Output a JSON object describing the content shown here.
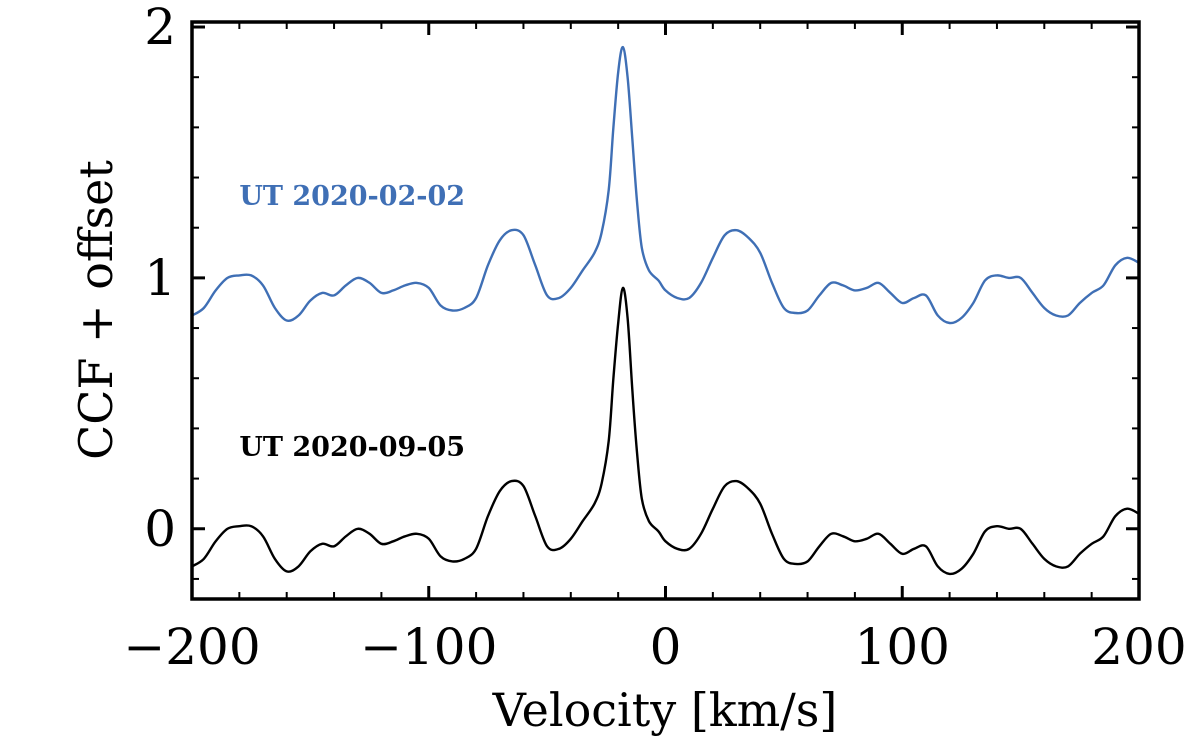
{
  "chart_data": {
    "type": "line",
    "xlabel": "Velocity [km/s]",
    "ylabel": "CCF + offset",
    "xlim": [
      -200,
      200
    ],
    "ylim": [
      -0.28,
      2.02
    ],
    "x_ticks": [
      -200,
      -100,
      0,
      100,
      200
    ],
    "x_tick_labels": [
      "−200",
      "−100",
      "0",
      "100",
      "200"
    ],
    "y_ticks": [
      0,
      1,
      2
    ],
    "y_tick_labels": [
      "0",
      "1",
      "2"
    ],
    "grid": false,
    "series": [
      {
        "name": "UT 2020-02-02",
        "color": "#3f6fb5",
        "offset": 1,
        "label": "UT 2020-02-02",
        "points": [
          [
            -200,
            -0.15
          ],
          [
            -195,
            -0.12
          ],
          [
            -190,
            -0.05
          ],
          [
            -185,
            0.0
          ],
          [
            -180,
            0.01
          ],
          [
            -175,
            0.01
          ],
          [
            -170,
            -0.03
          ],
          [
            -165,
            -0.12
          ],
          [
            -160,
            -0.17
          ],
          [
            -155,
            -0.15
          ],
          [
            -150,
            -0.09
          ],
          [
            -145,
            -0.06
          ],
          [
            -140,
            -0.07
          ],
          [
            -135,
            -0.03
          ],
          [
            -130,
            0.0
          ],
          [
            -125,
            -0.02
          ],
          [
            -120,
            -0.06
          ],
          [
            -115,
            -0.05
          ],
          [
            -110,
            -0.03
          ],
          [
            -105,
            -0.02
          ],
          [
            -100,
            -0.04
          ],
          [
            -95,
            -0.11
          ],
          [
            -90,
            -0.13
          ],
          [
            -85,
            -0.12
          ],
          [
            -80,
            -0.08
          ],
          [
            -75,
            0.05
          ],
          [
            -70,
            0.15
          ],
          [
            -65,
            0.19
          ],
          [
            -60,
            0.17
          ],
          [
            -55,
            0.05
          ],
          [
            -50,
            -0.07
          ],
          [
            -45,
            -0.08
          ],
          [
            -40,
            -0.04
          ],
          [
            -35,
            0.03
          ],
          [
            -30,
            0.1
          ],
          [
            -27,
            0.18
          ],
          [
            -24,
            0.35
          ],
          [
            -22,
            0.6
          ],
          [
            -20,
            0.82
          ],
          [
            -18,
            0.92
          ],
          [
            -16,
            0.8
          ],
          [
            -14,
            0.55
          ],
          [
            -12,
            0.3
          ],
          [
            -10,
            0.12
          ],
          [
            -7,
            0.03
          ],
          [
            -3,
            -0.01
          ],
          [
            0,
            -0.05
          ],
          [
            5,
            -0.08
          ],
          [
            10,
            -0.08
          ],
          [
            15,
            -0.02
          ],
          [
            20,
            0.08
          ],
          [
            25,
            0.17
          ],
          [
            30,
            0.19
          ],
          [
            35,
            0.16
          ],
          [
            40,
            0.1
          ],
          [
            45,
            -0.02
          ],
          [
            50,
            -0.12
          ],
          [
            55,
            -0.14
          ],
          [
            60,
            -0.13
          ],
          [
            65,
            -0.07
          ],
          [
            70,
            -0.02
          ],
          [
            75,
            -0.03
          ],
          [
            80,
            -0.05
          ],
          [
            85,
            -0.04
          ],
          [
            90,
            -0.02
          ],
          [
            95,
            -0.06
          ],
          [
            100,
            -0.1
          ],
          [
            105,
            -0.08
          ],
          [
            110,
            -0.07
          ],
          [
            115,
            -0.15
          ],
          [
            120,
            -0.18
          ],
          [
            125,
            -0.16
          ],
          [
            130,
            -0.1
          ],
          [
            135,
            -0.01
          ],
          [
            140,
            0.01
          ],
          [
            145,
            0.0
          ],
          [
            150,
            0.0
          ],
          [
            155,
            -0.06
          ],
          [
            160,
            -0.12
          ],
          [
            165,
            -0.15
          ],
          [
            170,
            -0.15
          ],
          [
            175,
            -0.1
          ],
          [
            180,
            -0.06
          ],
          [
            185,
            -0.03
          ],
          [
            190,
            0.05
          ],
          [
            195,
            0.08
          ],
          [
            200,
            0.06
          ]
        ]
      },
      {
        "name": "UT 2020-09-05",
        "color": "#000000",
        "offset": 0,
        "label": "UT 2020-09-05",
        "points": [
          [
            -200,
            -0.15
          ],
          [
            -195,
            -0.12
          ],
          [
            -190,
            -0.05
          ],
          [
            -185,
            0.0
          ],
          [
            -180,
            0.01
          ],
          [
            -175,
            0.01
          ],
          [
            -170,
            -0.03
          ],
          [
            -165,
            -0.12
          ],
          [
            -160,
            -0.17
          ],
          [
            -155,
            -0.15
          ],
          [
            -150,
            -0.09
          ],
          [
            -145,
            -0.06
          ],
          [
            -140,
            -0.07
          ],
          [
            -135,
            -0.03
          ],
          [
            -130,
            0.0
          ],
          [
            -125,
            -0.02
          ],
          [
            -120,
            -0.06
          ],
          [
            -115,
            -0.05
          ],
          [
            -110,
            -0.03
          ],
          [
            -105,
            -0.02
          ],
          [
            -100,
            -0.04
          ],
          [
            -95,
            -0.11
          ],
          [
            -90,
            -0.13
          ],
          [
            -85,
            -0.12
          ],
          [
            -80,
            -0.08
          ],
          [
            -75,
            0.05
          ],
          [
            -70,
            0.15
          ],
          [
            -65,
            0.19
          ],
          [
            -60,
            0.17
          ],
          [
            -55,
            0.05
          ],
          [
            -50,
            -0.07
          ],
          [
            -45,
            -0.08
          ],
          [
            -40,
            -0.04
          ],
          [
            -35,
            0.03
          ],
          [
            -30,
            0.1
          ],
          [
            -27,
            0.18
          ],
          [
            -24,
            0.35
          ],
          [
            -22,
            0.6
          ],
          [
            -20,
            0.82
          ],
          [
            -18,
            0.96
          ],
          [
            -16,
            0.84
          ],
          [
            -14,
            0.55
          ],
          [
            -12,
            0.3
          ],
          [
            -10,
            0.12
          ],
          [
            -7,
            0.03
          ],
          [
            -3,
            -0.01
          ],
          [
            0,
            -0.05
          ],
          [
            5,
            -0.08
          ],
          [
            10,
            -0.08
          ],
          [
            15,
            -0.02
          ],
          [
            20,
            0.08
          ],
          [
            25,
            0.17
          ],
          [
            30,
            0.19
          ],
          [
            35,
            0.16
          ],
          [
            40,
            0.1
          ],
          [
            45,
            -0.02
          ],
          [
            50,
            -0.12
          ],
          [
            55,
            -0.14
          ],
          [
            60,
            -0.13
          ],
          [
            65,
            -0.07
          ],
          [
            70,
            -0.02
          ],
          [
            75,
            -0.03
          ],
          [
            80,
            -0.05
          ],
          [
            85,
            -0.04
          ],
          [
            90,
            -0.02
          ],
          [
            95,
            -0.06
          ],
          [
            100,
            -0.1
          ],
          [
            105,
            -0.08
          ],
          [
            110,
            -0.07
          ],
          [
            115,
            -0.15
          ],
          [
            120,
            -0.18
          ],
          [
            125,
            -0.16
          ],
          [
            130,
            -0.1
          ],
          [
            135,
            -0.01
          ],
          [
            140,
            0.01
          ],
          [
            145,
            0.0
          ],
          [
            150,
            0.0
          ],
          [
            155,
            -0.06
          ],
          [
            160,
            -0.12
          ],
          [
            165,
            -0.15
          ],
          [
            170,
            -0.15
          ],
          [
            175,
            -0.1
          ],
          [
            180,
            -0.06
          ],
          [
            185,
            -0.03
          ],
          [
            190,
            0.05
          ],
          [
            195,
            0.08
          ],
          [
            200,
            0.06
          ]
        ]
      }
    ]
  }
}
